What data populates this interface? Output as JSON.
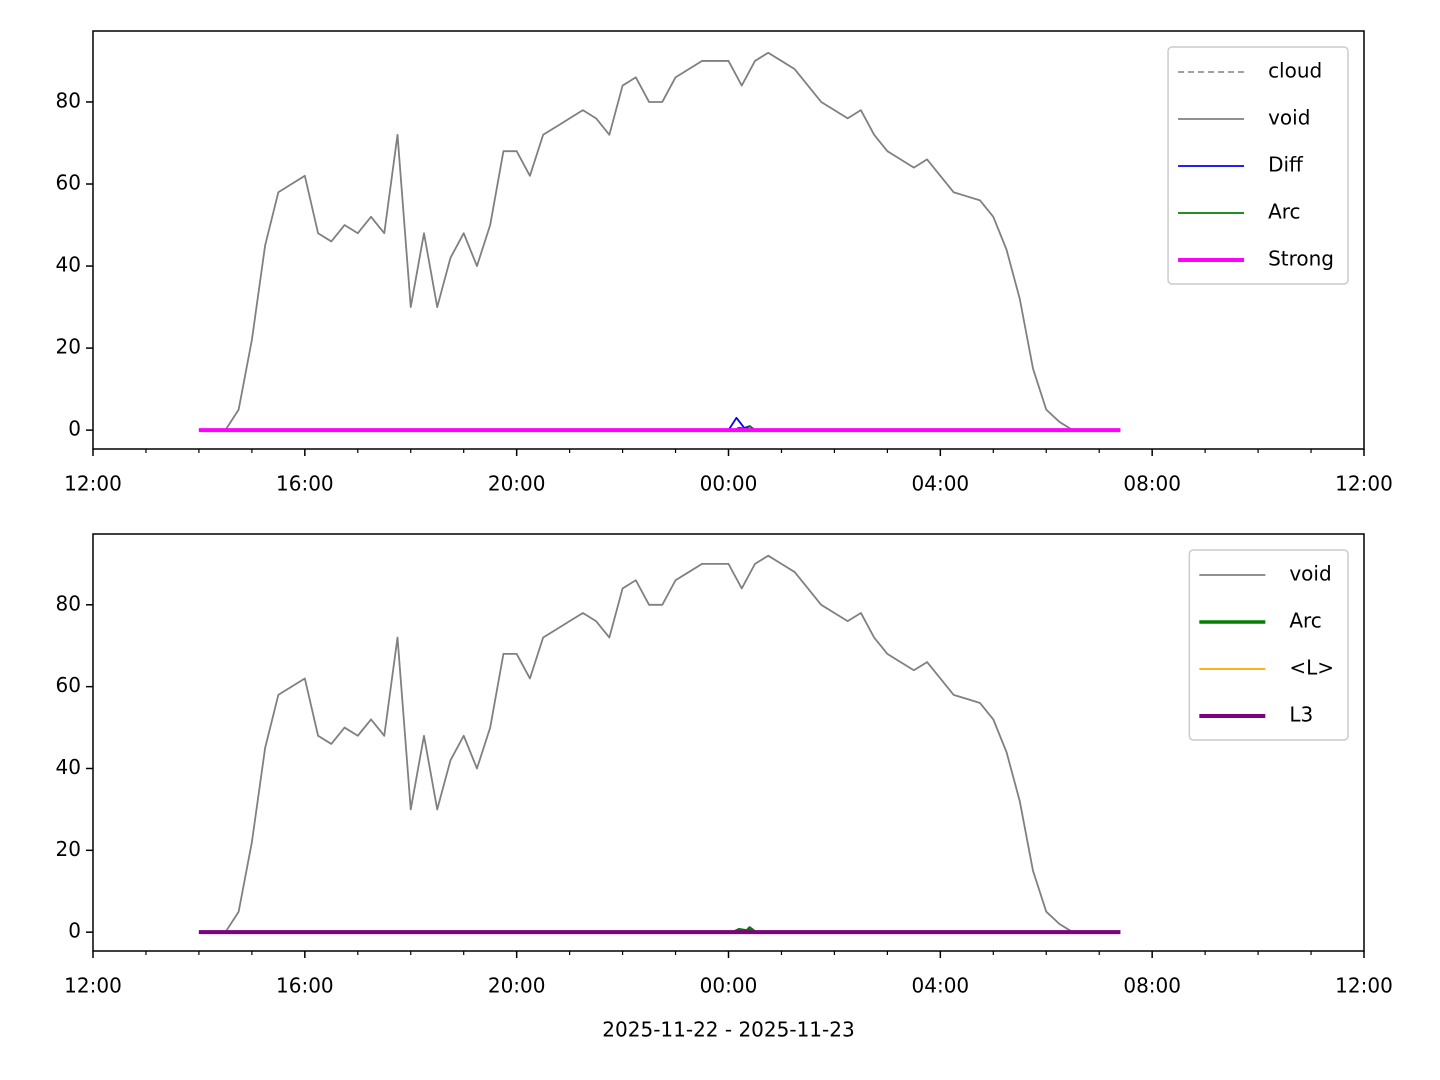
{
  "chart_data": [
    {
      "type": "line",
      "xlim": [
        12,
        36
      ],
      "xticks": [
        {
          "value": 12,
          "label": "12:00"
        },
        {
          "value": 16,
          "label": "16:00"
        },
        {
          "value": 20,
          "label": "20:00"
        },
        {
          "value": 24,
          "label": "00:00"
        },
        {
          "value": 28,
          "label": "04:00"
        },
        {
          "value": 32,
          "label": "08:00"
        },
        {
          "value": 36,
          "label": "12:00"
        }
      ],
      "xminorticks": [
        13,
        14,
        15,
        17,
        18,
        19,
        21,
        22,
        23,
        25,
        26,
        27,
        29,
        30,
        31,
        33,
        34,
        35
      ],
      "ylim": [
        -4.6,
        97.3
      ],
      "yticks": [
        0,
        20,
        40,
        60,
        80
      ],
      "legend": "upper right",
      "series": [
        {
          "name": "cloud",
          "color": "#808080",
          "width": 1.5,
          "dash": true,
          "x": [
            14,
            31.4
          ],
          "values": [
            0,
            0
          ]
        },
        {
          "name": "void",
          "color": "#808080",
          "width": 1.8,
          "x": [
            14,
            14.25,
            14.5,
            14.75,
            15,
            15.25,
            15.5,
            15.75,
            16,
            16.25,
            16.5,
            16.75,
            17,
            17.25,
            17.5,
            17.75,
            18,
            18.25,
            18.5,
            18.75,
            19,
            19.25,
            19.5,
            19.75,
            20,
            20.25,
            20.5,
            20.75,
            21,
            21.25,
            21.5,
            21.75,
            22,
            22.25,
            22.5,
            22.75,
            23,
            23.25,
            23.5,
            23.75,
            24,
            24.25,
            24.5,
            24.75,
            25,
            25.25,
            25.5,
            25.75,
            26,
            26.25,
            26.5,
            26.75,
            27,
            27.25,
            27.5,
            27.75,
            28,
            28.25,
            28.5,
            28.75,
            29,
            29.25,
            29.5,
            29.75,
            30,
            30.25,
            30.5,
            30.75,
            31,
            31.25,
            31.4
          ],
          "values": [
            0,
            0,
            0,
            5,
            22,
            45,
            58,
            60,
            62,
            48,
            46,
            50,
            48,
            52,
            48,
            72,
            30,
            48,
            30,
            42,
            48,
            40,
            50,
            68,
            68,
            62,
            72,
            74,
            76,
            78,
            76,
            72,
            84,
            86,
            80,
            80,
            86,
            88,
            90,
            90,
            90,
            84,
            90,
            92,
            90,
            88,
            84,
            80,
            78,
            76,
            78,
            72,
            68,
            66,
            64,
            66,
            62,
            58,
            57,
            56,
            52,
            44,
            32,
            15,
            5,
            2,
            0,
            0,
            0,
            0,
            0
          ]
        },
        {
          "name": "Diff",
          "color": "#0000ff",
          "width": 1.8,
          "x": [
            14,
            24,
            24.15,
            24.3,
            24.4,
            24.5,
            31.4
          ],
          "values": [
            0,
            0,
            3,
            0.5,
            1,
            0,
            0
          ]
        },
        {
          "name": "Arc",
          "color": "#008000",
          "width": 1.8,
          "x": [
            14,
            24.1,
            24.2,
            24.35,
            24.4,
            24.5,
            31.4
          ],
          "values": [
            0,
            0,
            0.6,
            0.3,
            1,
            0,
            0
          ]
        },
        {
          "name": "Strong",
          "color": "#ff00ff",
          "width": 4,
          "x": [
            14,
            31.4
          ],
          "values": [
            0,
            0
          ]
        }
      ]
    },
    {
      "type": "line",
      "xlabel": "2025-11-22 - 2025-11-23",
      "xlim": [
        12,
        36
      ],
      "xticks": [
        {
          "value": 12,
          "label": "12:00"
        },
        {
          "value": 16,
          "label": "16:00"
        },
        {
          "value": 20,
          "label": "20:00"
        },
        {
          "value": 24,
          "label": "00:00"
        },
        {
          "value": 28,
          "label": "04:00"
        },
        {
          "value": 32,
          "label": "08:00"
        },
        {
          "value": 36,
          "label": "12:00"
        }
      ],
      "xminorticks": [
        13,
        14,
        15,
        17,
        18,
        19,
        21,
        22,
        23,
        25,
        26,
        27,
        29,
        30,
        31,
        33,
        34,
        35
      ],
      "ylim": [
        -4.6,
        97.3
      ],
      "yticks": [
        0,
        20,
        40,
        60,
        80
      ],
      "legend": "upper right",
      "series": [
        {
          "name": "void",
          "color": "#808080",
          "width": 1.8,
          "x": [
            14,
            14.25,
            14.5,
            14.75,
            15,
            15.25,
            15.5,
            15.75,
            16,
            16.25,
            16.5,
            16.75,
            17,
            17.25,
            17.5,
            17.75,
            18,
            18.25,
            18.5,
            18.75,
            19,
            19.25,
            19.5,
            19.75,
            20,
            20.25,
            20.5,
            20.75,
            21,
            21.25,
            21.5,
            21.75,
            22,
            22.25,
            22.5,
            22.75,
            23,
            23.25,
            23.5,
            23.75,
            24,
            24.25,
            24.5,
            24.75,
            25,
            25.25,
            25.5,
            25.75,
            26,
            26.25,
            26.5,
            26.75,
            27,
            27.25,
            27.5,
            27.75,
            28,
            28.25,
            28.5,
            28.75,
            29,
            29.25,
            29.5,
            29.75,
            30,
            30.25,
            30.5,
            30.75,
            31,
            31.25,
            31.4
          ],
          "values": [
            0,
            0,
            0,
            5,
            22,
            45,
            58,
            60,
            62,
            48,
            46,
            50,
            48,
            52,
            48,
            72,
            30,
            48,
            30,
            42,
            48,
            40,
            50,
            68,
            68,
            62,
            72,
            74,
            76,
            78,
            76,
            72,
            84,
            86,
            80,
            80,
            86,
            88,
            90,
            90,
            90,
            84,
            90,
            92,
            90,
            88,
            84,
            80,
            78,
            76,
            78,
            72,
            68,
            66,
            64,
            66,
            62,
            58,
            57,
            56,
            52,
            44,
            32,
            15,
            5,
            2,
            0,
            0,
            0,
            0,
            0
          ]
        },
        {
          "name": "Arc",
          "color": "#008000",
          "width": 3.5,
          "x": [
            14,
            24.1,
            24.2,
            24.35,
            24.4,
            24.5,
            31.4
          ],
          "values": [
            0,
            0,
            0.6,
            0.3,
            1,
            0,
            0
          ]
        },
        {
          "name": "<L>",
          "color": "#ffa500",
          "width": 1.8,
          "x": [
            14,
            31.4
          ],
          "values": [
            0,
            0
          ]
        },
        {
          "name": "L3",
          "color": "#800080",
          "width": 4,
          "x": [
            14,
            31.4
          ],
          "values": [
            0,
            0
          ]
        }
      ]
    }
  ]
}
